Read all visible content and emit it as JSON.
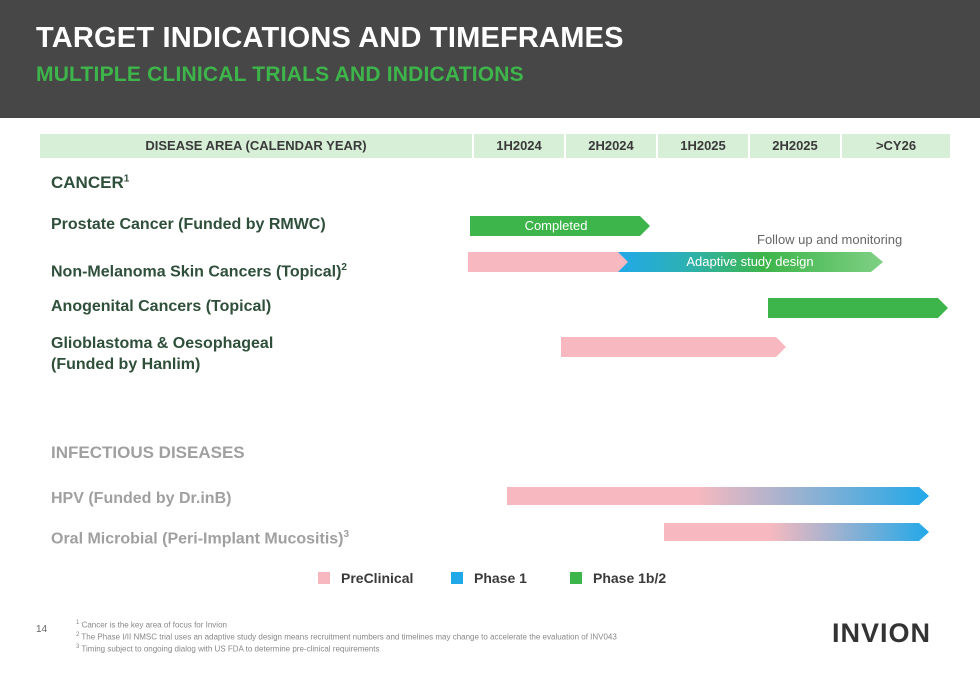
{
  "header": {
    "title": "TARGET INDICATIONS AND TIMEFRAMES",
    "subtitle": "MULTIPLE CLINICAL TRIALS AND INDICATIONS"
  },
  "columns": [
    "DISEASE AREA (CALENDAR YEAR)",
    "1H2024",
    "2H2024",
    "1H2025",
    "2H2025",
    ">CY26"
  ],
  "sections": {
    "cancer": {
      "label": "CANCER",
      "sup": "1"
    },
    "infectious": {
      "label": "INFECTIOUS DISEASES"
    }
  },
  "rows": {
    "prostate": {
      "label": "Prostate Cancer (Funded by RMWC)"
    },
    "nmsc": {
      "label": "Non-Melanoma Skin Cancers (Topical)",
      "sup": "2"
    },
    "anogenital": {
      "label": "Anogenital Cancers (Topical)"
    },
    "glio_line1": "Glioblastoma & Oesophageal",
    "glio_line2": "(Funded by Hanlim)",
    "hpv": {
      "label": "HPV (Funded by Dr.inB)"
    },
    "oral": {
      "label": "Oral Microbial (Peri-Implant Mucositis)",
      "sup": "3"
    }
  },
  "bars": {
    "prostate_label": "Completed",
    "nmsc_label": "Adaptive study design",
    "followup": "Follow up and monitoring"
  },
  "legend": {
    "preclinical": "PreClinical",
    "phase1": "Phase 1",
    "phase1b2": "Phase 1b/2"
  },
  "colors": {
    "preclinical": "#f7b9bf",
    "phase1": "#21a8e8",
    "phase1b2": "#3db54a",
    "header_bg": "#474747",
    "accent_green": "#3db54a"
  },
  "footer": {
    "page_number": "14",
    "fn1_sup": "1",
    "fn1": "Cancer is the key area of focus for Invion",
    "fn2_sup": "2",
    "fn2": "The Phase I/II NMSC trial uses an adaptive study design means recruitment numbers and timelines may change to accelerate the evaluation of INV043",
    "fn3_sup": "3",
    "fn3": "Timing subject to ongoing dialog with US FDA to determine pre-clinical requirements",
    "logo": "INVION"
  }
}
